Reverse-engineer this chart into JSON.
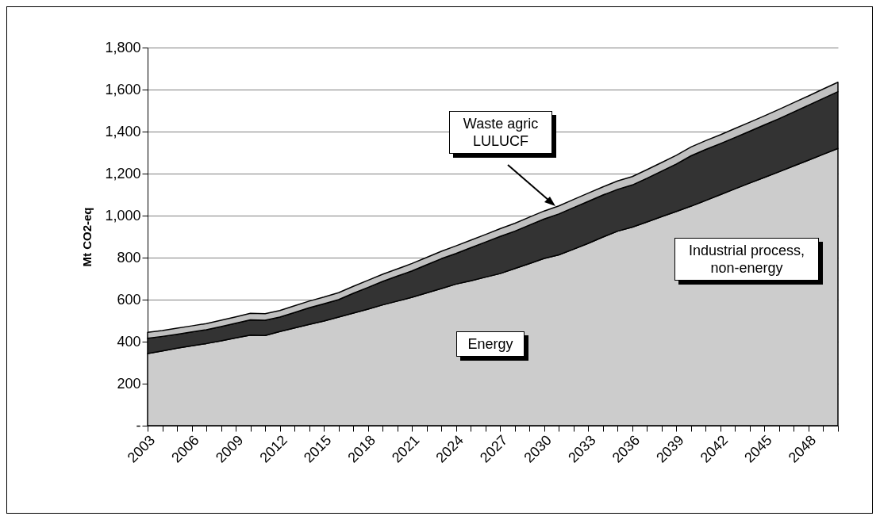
{
  "chart_data": {
    "type": "area",
    "stacked": true,
    "ylabel": "Mt CO2-eq",
    "categories": [
      "2003",
      null,
      null,
      "2006",
      null,
      null,
      "2009",
      null,
      null,
      "2012",
      null,
      null,
      "2015",
      null,
      null,
      "2018",
      null,
      null,
      "2021",
      null,
      null,
      "2024",
      null,
      null,
      "2027",
      null,
      null,
      "2030",
      null,
      null,
      "2033",
      null,
      null,
      "2036",
      null,
      null,
      "2039",
      null,
      null,
      "2042",
      null,
      null,
      "2045",
      null,
      null,
      "2048",
      null,
      null
    ],
    "series": [
      {
        "name": "Energy",
        "color": "#cccccc",
        "values": [
          343,
          356,
          369,
          380,
          391,
          404,
          418,
          431,
          429,
          448,
          465,
          482,
          498,
          517,
          536,
          555,
          575,
          593,
          611,
          632,
          653,
          674,
          690,
          707,
          724,
          748,
          772,
          796,
          813,
          840,
          868,
          898,
          926,
          945,
          970,
          995,
          1020,
          1045,
          1072,
          1100,
          1128,
          1155,
          1182,
          1209,
          1237,
          1264,
          1292,
          1320
        ]
      },
      {
        "name": "Industrial process, non-energy",
        "color": "#333333",
        "values": [
          73,
          69,
          66,
          66,
          66,
          68,
          70,
          73,
          73,
          69,
          74,
          79,
          82,
          83,
          94,
          103,
          112,
          119,
          126,
          134,
          142,
          146,
          157,
          167,
          177,
          178,
          183,
          188,
          195,
          198,
          200,
          200,
          199,
          201,
          208,
          217,
          226,
          240,
          243,
          243,
          244,
          247,
          250,
          253,
          257,
          262,
          266,
          270
        ]
      },
      {
        "name": "Waste agric LULUCF",
        "color": "#c0c0c0",
        "values": [
          28,
          28,
          29,
          29,
          29,
          30,
          30,
          31,
          31,
          31,
          32,
          32,
          32,
          33,
          33,
          34,
          34,
          34,
          35,
          35,
          35,
          36,
          36,
          36,
          37,
          37,
          38,
          38,
          38,
          39,
          39,
          39,
          40,
          40,
          41,
          41,
          41,
          42,
          42,
          42,
          43,
          43,
          43,
          44,
          44,
          44,
          45,
          45
        ]
      }
    ],
    "ylim": [
      0,
      1800
    ],
    "yticks": [
      {
        "value": 0,
        "label": "-"
      },
      {
        "value": 200,
        "label": "200"
      },
      {
        "value": 400,
        "label": "400"
      },
      {
        "value": 600,
        "label": "600"
      },
      {
        "value": 800,
        "label": "800"
      },
      {
        "value": 1000,
        "label": "1,000"
      },
      {
        "value": 1200,
        "label": "1,200"
      },
      {
        "value": 1400,
        "label": "1,400"
      },
      {
        "value": 1600,
        "label": "1,600"
      },
      {
        "value": 1800,
        "label": "1,800"
      }
    ],
    "grid": "y",
    "legend": false
  }
}
